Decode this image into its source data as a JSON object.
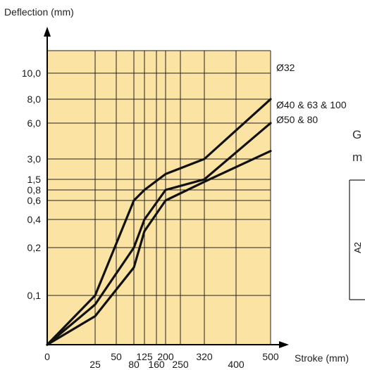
{
  "chart_data": {
    "type": "line",
    "xlabel": "Stroke (mm)",
    "ylabel": "Deflection (mm)",
    "x_ticks": [
      "0",
      "25",
      "50",
      "80",
      "125",
      "160",
      "200",
      "250",
      "320",
      "400",
      "500"
    ],
    "y_ticks": [
      "0,1",
      "0,2",
      "0,4",
      "0,6",
      "0,8",
      "1,5",
      "3,0",
      "6,0",
      "8,0",
      "10,0"
    ],
    "grid": true,
    "background_color": "#fbe3a4",
    "line_color": "#111111",
    "series": [
      {
        "name": "Ø32",
        "points": [
          {
            "x": "0",
            "y": "0"
          },
          {
            "x": "25",
            "y": "0,1"
          },
          {
            "x": "80",
            "y": "0,6"
          },
          {
            "x": "125",
            "y": "0,8"
          },
          {
            "x": "200",
            "y": "1,8"
          },
          {
            "x": "320",
            "y": "3,0"
          },
          {
            "x": "500",
            "y": "8,0"
          }
        ]
      },
      {
        "name": "Ø40 & 63 & 100",
        "points": [
          {
            "x": "0",
            "y": "0"
          },
          {
            "x": "25",
            "y": "0,08"
          },
          {
            "x": "80",
            "y": "0,2"
          },
          {
            "x": "125",
            "y": "0,4"
          },
          {
            "x": "200",
            "y": "0,8"
          },
          {
            "x": "320",
            "y": "1,5"
          },
          {
            "x": "500",
            "y": "6,0"
          }
        ]
      },
      {
        "name": "Ø50 & 80",
        "points": [
          {
            "x": "0",
            "y": "0"
          },
          {
            "x": "25",
            "y": "0,06"
          },
          {
            "x": "80",
            "y": "0,15"
          },
          {
            "x": "125",
            "y": "0,3"
          },
          {
            "x": "200",
            "y": "0,6"
          },
          {
            "x": "320",
            "y": "1,3"
          },
          {
            "x": "500",
            "y": "3,5"
          }
        ]
      }
    ]
  },
  "side": {
    "text_line1": "G",
    "text_line2": "m",
    "box_label": "A2"
  }
}
